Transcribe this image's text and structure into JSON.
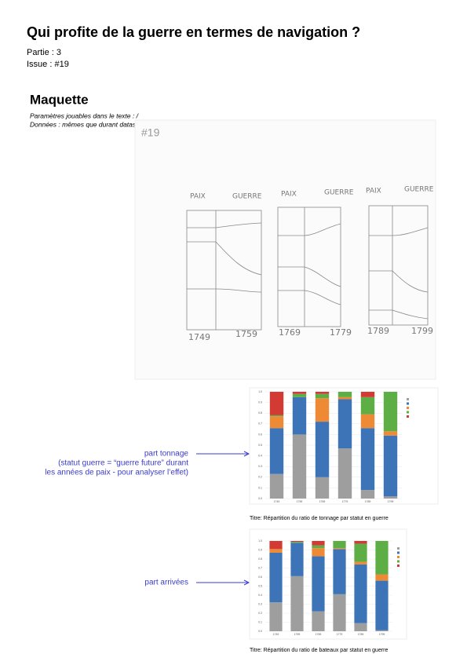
{
  "header": {
    "title": "Qui profite de la guerre en termes de navigation ?",
    "partie": "Partie : 3",
    "issue": "Issue : #19"
  },
  "section": {
    "title": "Maquette",
    "params": "Paramètres jouables dans le texte : /",
    "data": "Données : mêmes que durant datasprint"
  },
  "sketch": {
    "number": "#19",
    "labels": [
      "PAIX",
      "GUERRE",
      "PAIX",
      "GUERRE",
      "PAIX",
      "GUERRE"
    ],
    "years": [
      "1749",
      "1759",
      "1769",
      "1779",
      "1789",
      "1799"
    ]
  },
  "annotations": [
    {
      "lines": [
        "part tonnage",
        "(statut guerre = “guerre future” durant",
        "les années de paix - pour analyser l’effet)"
      ]
    },
    {
      "lines": [
        "part arrivées"
      ]
    }
  ],
  "captions": [
    "Titre: Répartition du ratio de tonnage par statut en guerre",
    "Titre: Répartition du ratio de bateaux par statut en guerre"
  ],
  "chart_data": [
    {
      "type": "stacked_bar",
      "categories": [
        "1749",
        "1759",
        "1769",
        "1779",
        "1789",
        "1799"
      ],
      "ylim": [
        0,
        1
      ],
      "yticks": [
        {
          "value": 0,
          "label": "0.0"
        },
        0.1,
        0.2,
        0.3,
        0.4,
        0.5,
        0.6,
        0.7,
        0.8,
        0.9,
        {
          "value": 1,
          "label": "1.0"
        }
      ],
      "series": [
        {
          "color": "#9e9e9e",
          "values": [
            0.23,
            0.6,
            0.2,
            0.47,
            0.08,
            0.02
          ]
        },
        {
          "color": "#3d74b8",
          "values": [
            0.43,
            0.35,
            0.52,
            0.46,
            0.58,
            0.57
          ]
        },
        {
          "color": "#ee8a35",
          "values": [
            0.11,
            0,
            0.22,
            0.02,
            0.13,
            0.04
          ]
        },
        {
          "color": "#5cae45",
          "values": [
            0.01,
            0.03,
            0.04,
            0.05,
            0.16,
            0.37
          ]
        },
        {
          "color": "#d33a33",
          "values": [
            0.22,
            0.02,
            0.02,
            0,
            0.05,
            0
          ]
        }
      ]
    },
    {
      "type": "stacked_bar",
      "categories": [
        "1749",
        "1759",
        "1769",
        "1779",
        "1789",
        "1799"
      ],
      "ylim": [
        0,
        1
      ],
      "yticks": [
        {
          "value": 0,
          "label": "0.0"
        },
        0.1,
        0.2,
        0.3,
        0.4,
        0.5,
        0.6,
        0.7,
        0.8,
        0.9,
        {
          "value": 1,
          "label": "1.0"
        }
      ],
      "series": [
        {
          "color": "#9e9e9e",
          "values": [
            0.32,
            0.61,
            0.22,
            0.41,
            0.09,
            0.01
          ]
        },
        {
          "color": "#3d74b8",
          "values": [
            0.55,
            0.37,
            0.61,
            0.5,
            0.65,
            0.55
          ]
        },
        {
          "color": "#ee8a35",
          "values": [
            0.04,
            0,
            0.09,
            0.01,
            0.03,
            0.07
          ]
        },
        {
          "color": "#5cae45",
          "values": [
            0,
            0.01,
            0.03,
            0.08,
            0.2,
            0.37
          ]
        },
        {
          "color": "#d33a33",
          "values": [
            0.09,
            0.01,
            0.05,
            0,
            0.03,
            0
          ]
        }
      ]
    }
  ]
}
